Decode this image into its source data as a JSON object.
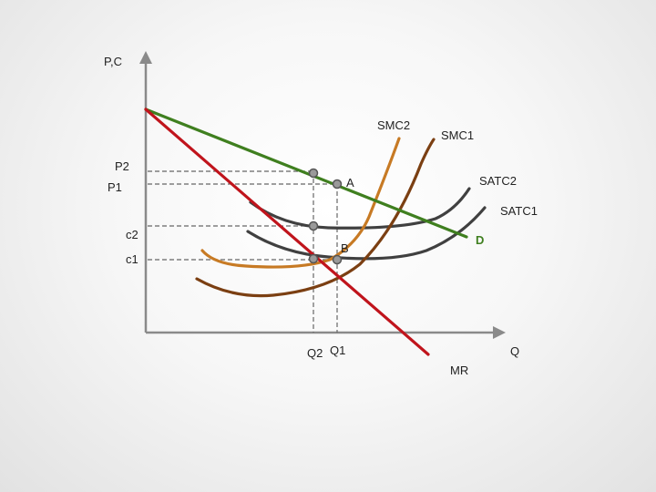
{
  "axes": {
    "y_label": "P,C",
    "x_label": "Q"
  },
  "tick_labels": {
    "p2": "P2",
    "p1": "P1",
    "c2": "c2",
    "c1": "c1",
    "q2": "Q2",
    "q1": "Q1"
  },
  "curves": {
    "demand": {
      "label": "D",
      "color": "#3f7f1f"
    },
    "marginal_revenue": {
      "label": "MR",
      "color": "#c0141c"
    },
    "smc1": {
      "label": "SMC1",
      "color": "#7b3f12"
    },
    "smc2": {
      "label": "SMC2",
      "color": "#c77a24"
    },
    "satc1": {
      "label": "SATC1",
      "color": "#404040"
    },
    "satc2": {
      "label": "SATC2",
      "color": "#404040"
    }
  },
  "points": {
    "a": "A",
    "b": "B"
  },
  "colors": {
    "axis": "#8a8a8a",
    "guides": "#666666",
    "labels": "#222222"
  }
}
